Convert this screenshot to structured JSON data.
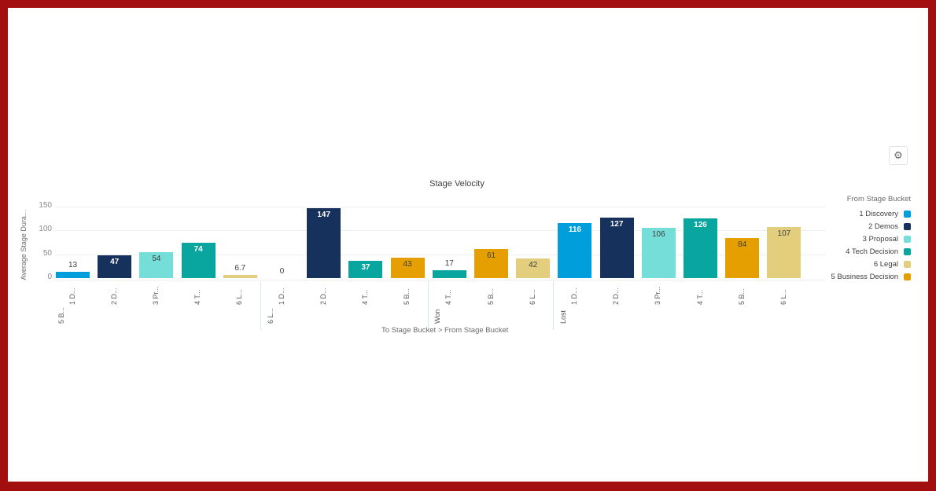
{
  "chart_data": {
    "type": "bar",
    "title": "Stage Velocity",
    "xlabel": "To Stage Bucket > From Stage Bucket",
    "ylabel": "Average Stage Dura...",
    "ylim": [
      0,
      150
    ],
    "yticks": [
      "150",
      "100",
      "50",
      "0"
    ],
    "grid": true,
    "legend_position": "right",
    "legend_title": "From Stage Bucket",
    "legend": [
      {
        "label": "1 Discovery",
        "color": "#009edb"
      },
      {
        "label": "2 Demos",
        "color": "#16325c"
      },
      {
        "label": "3 Proposal",
        "color": "#76ded9"
      },
      {
        "label": "4 Tech Decision",
        "color": "#08a69e"
      },
      {
        "label": "6 Legal",
        "color": "#e2ce7d"
      },
      {
        "label": "5 Business Decision",
        "color": "#e69f00"
      }
    ],
    "groups": [
      {
        "name": "5 B...",
        "bars": [
          {
            "category": "1 D...",
            "series": "1 Discovery",
            "value": 13,
            "label": "13"
          },
          {
            "category": "2 D...",
            "series": "2 Demos",
            "value": 47,
            "label": "47"
          },
          {
            "category": "3 Pr...",
            "series": "3 Proposal",
            "value": 54,
            "label": "54"
          },
          {
            "category": "4 T...",
            "series": "4 Tech Decision",
            "value": 74,
            "label": "74"
          },
          {
            "category": "6 L...",
            "series": "6 Legal",
            "value": 6.7,
            "label": "6.7"
          }
        ]
      },
      {
        "name": "6 L...",
        "bars": [
          {
            "category": "1 D...",
            "series": "1 Discovery",
            "value": 0,
            "label": "0"
          },
          {
            "category": "2 D...",
            "series": "2 Demos",
            "value": 147,
            "label": "147"
          },
          {
            "category": "4 T...",
            "series": "4 Tech Decision",
            "value": 37,
            "label": "37"
          },
          {
            "category": "5 B...",
            "series": "5 Business Decision",
            "value": 43,
            "label": "43"
          }
        ]
      },
      {
        "name": "Won",
        "bars": [
          {
            "category": "4 T...",
            "series": "4 Tech Decision",
            "value": 17,
            "label": "17"
          },
          {
            "category": "5 B...",
            "series": "5 Business Decision",
            "value": 61,
            "label": "61"
          },
          {
            "category": "6 L...",
            "series": "6 Legal",
            "value": 42,
            "label": "42"
          }
        ]
      },
      {
        "name": "Lost",
        "bars": [
          {
            "category": "1 D...",
            "series": "1 Discovery",
            "value": 116,
            "label": "116"
          },
          {
            "category": "2 D...",
            "series": "2 Demos",
            "value": 127,
            "label": "127"
          },
          {
            "category": "3 Pr...",
            "series": "3 Proposal",
            "value": 106,
            "label": "106"
          },
          {
            "category": "4 T...",
            "series": "4 Tech Decision",
            "value": 126,
            "label": "126"
          },
          {
            "category": "5 B...",
            "series": "5 Business Decision",
            "value": 84,
            "label": "84"
          },
          {
            "category": "6 L...",
            "series": "6 Legal",
            "value": 107,
            "label": "107"
          }
        ]
      }
    ]
  },
  "toolbar": {
    "settings_icon": "gear-icon",
    "settings_glyph": "⚙"
  }
}
